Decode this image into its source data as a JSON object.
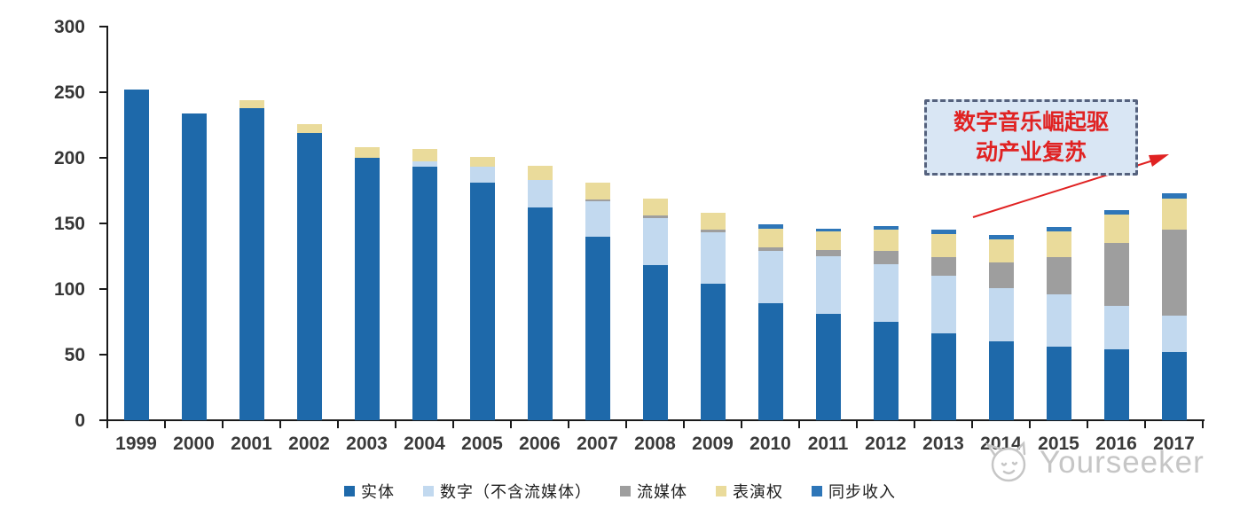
{
  "watermark": {
    "brand": "Yourseeker"
  },
  "annotation": {
    "line1": "数字音乐崛起驱",
    "line2": "动产业复苏",
    "text_color": "#e02222",
    "box_fill": "#d9e6f4",
    "box_border": "#55627e",
    "arrow_color": "#e02222"
  },
  "axes": {
    "y_tick_labels": [
      "0",
      "50",
      "100",
      "150",
      "200",
      "250",
      "300"
    ],
    "x_tick_labels": [
      "1999",
      "2000",
      "2001",
      "2002",
      "2003",
      "2004",
      "2005",
      "2006",
      "2007",
      "2008",
      "2009",
      "2010",
      "2011",
      "2012",
      "2013",
      "2014",
      "2015",
      "2016",
      "2017"
    ]
  },
  "chart_data": {
    "type": "bar",
    "stacked": true,
    "grid": false,
    "legend_position": "bottom",
    "ylim": [
      0,
      300
    ],
    "yticks": [
      0,
      50,
      100,
      150,
      200,
      250,
      300
    ],
    "categories": [
      "1999",
      "2000",
      "2001",
      "2002",
      "2003",
      "2004",
      "2005",
      "2006",
      "2007",
      "2008",
      "2009",
      "2010",
      "2011",
      "2012",
      "2013",
      "2014",
      "2015",
      "2016",
      "2017"
    ],
    "series": [
      {
        "key": "physical",
        "name": "实体",
        "color": "#1e69aa",
        "values": [
          252,
          234,
          238,
          219,
          200,
          193,
          181,
          162,
          140,
          118,
          104,
          89,
          81,
          75,
          66,
          60,
          56,
          54,
          52
        ]
      },
      {
        "key": "digital-excl-streaming",
        "name": "数字（不含流媒体）",
        "color": "#c2d9ef",
        "values": [
          0,
          0,
          0,
          0,
          0,
          4,
          12,
          21,
          27,
          36,
          39,
          40,
          44,
          44,
          44,
          41,
          40,
          33,
          28
        ]
      },
      {
        "key": "streaming",
        "name": "流媒体",
        "color": "#9e9e9e",
        "values": [
          0,
          0,
          0,
          0,
          0,
          0,
          0,
          0,
          1,
          2,
          2,
          3,
          5,
          10,
          14,
          19,
          28,
          48,
          65
        ]
      },
      {
        "key": "performance-rights",
        "name": "表演权",
        "color": "#eadb9b",
        "values": [
          0,
          0,
          6,
          7,
          8,
          10,
          8,
          11,
          13,
          13,
          13,
          14,
          14,
          16,
          18,
          18,
          20,
          22,
          24
        ]
      },
      {
        "key": "sync",
        "name": "同步收入",
        "color": "#2e76b8",
        "values": [
          0,
          0,
          0,
          0,
          0,
          0,
          0,
          0,
          0,
          0,
          0,
          3,
          2,
          3,
          3,
          3,
          3,
          3,
          4
        ]
      }
    ],
    "totals": [
      252,
      234,
      244,
      226,
      208,
      207,
      201,
      194,
      181,
      169,
      158,
      149,
      146,
      148,
      145,
      141,
      147,
      160,
      173
    ]
  }
}
